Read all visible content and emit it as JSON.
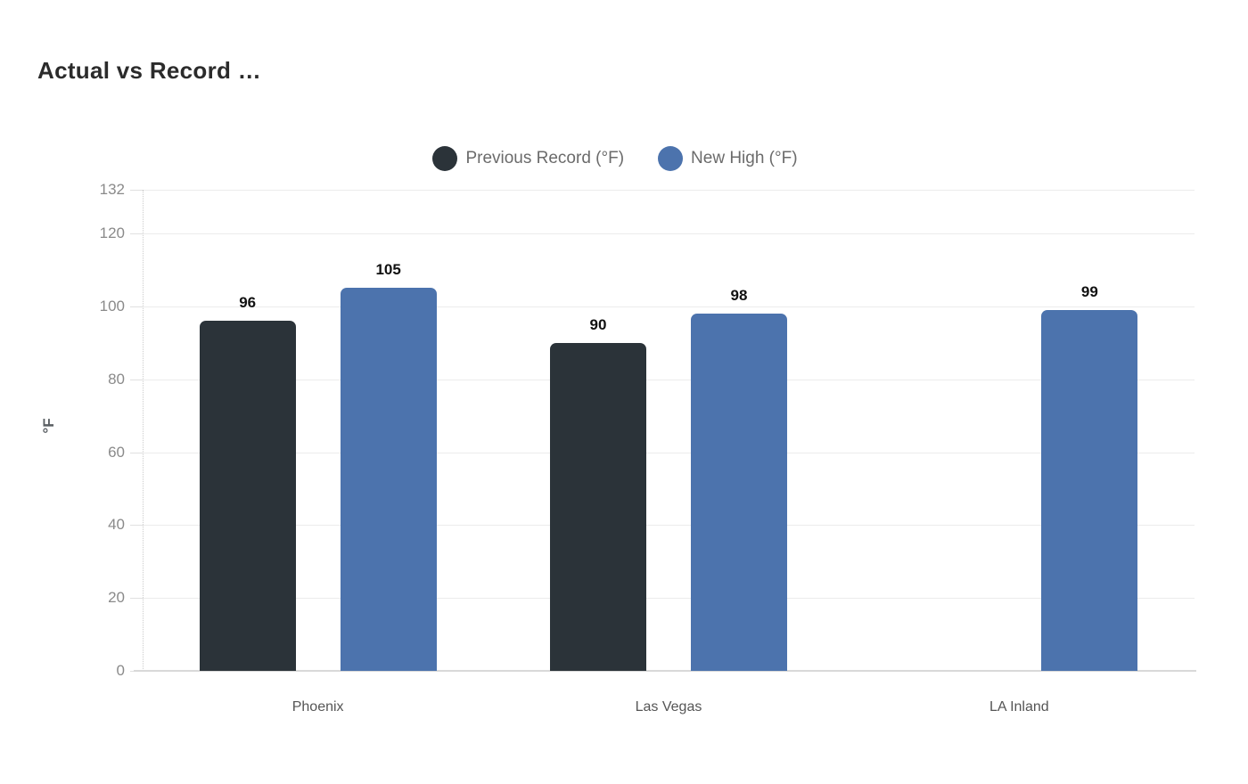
{
  "title": "Actual vs Record …",
  "y_axis_title": "°F",
  "colors": {
    "background": "#ffffff",
    "title_text": "#2b2b2b",
    "legend_text": "#6b6b6b",
    "tick_text": "#8a8a8a",
    "category_text": "#555555",
    "data_label_text": "#111111",
    "grid_line": "#ececec",
    "axis_line": "#d9d9d9",
    "series_previous_record": "#2b3339",
    "series_new_high": "#4c73ad"
  },
  "legend": {
    "items": [
      {
        "label": "Previous Record (°F)",
        "color": "#2b3339"
      },
      {
        "label": "New High (°F)",
        "color": "#4c73ad"
      }
    ]
  },
  "chart_data": {
    "type": "bar",
    "title": "Actual vs Record …",
    "categories": [
      "Phoenix",
      "Las Vegas",
      "LA Inland"
    ],
    "series": [
      {
        "name": "Previous Record (°F)",
        "color": "#2b3339",
        "values": [
          96,
          90,
          null
        ]
      },
      {
        "name": "New High (°F)",
        "color": "#4c73ad",
        "values": [
          105,
          98,
          99
        ]
      }
    ],
    "data_labels": true,
    "xlabel": "",
    "ylabel": "°F",
    "ylim": [
      0,
      132
    ],
    "yticks": [
      0,
      20,
      40,
      60,
      80,
      100,
      120,
      132
    ],
    "grid": true,
    "legend_position": "top-center"
  }
}
